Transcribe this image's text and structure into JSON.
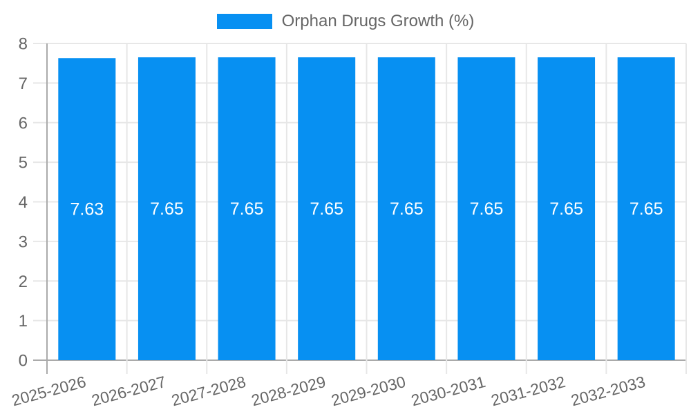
{
  "chart_data": {
    "type": "bar",
    "title": "",
    "legend": "Orphan Drugs Growth (%)",
    "legend_position": "top-center",
    "categories": [
      "2025-2026",
      "2026-2027",
      "2027-2028",
      "2028-2029",
      "2029-2030",
      "2030-2031",
      "2031-2032",
      "2032-2033"
    ],
    "series": [
      {
        "name": "Orphan Drugs Growth (%)",
        "values": [
          7.63,
          7.65,
          7.65,
          7.65,
          7.65,
          7.65,
          7.65,
          7.65
        ]
      }
    ],
    "value_labels": [
      "7.63",
      "7.65",
      "7.65",
      "7.65",
      "7.65",
      "7.65",
      "7.65",
      "7.65"
    ],
    "y_ticks": [
      0,
      1,
      2,
      3,
      4,
      5,
      6,
      7,
      8
    ],
    "ylim": [
      0,
      8
    ],
    "xlabel": "",
    "ylabel": "",
    "grid": true,
    "x_label_rotation_deg": -15,
    "colors": {
      "bar": "#0790f2",
      "axis_text": "#666666",
      "grid_line": "#e7e7e7",
      "zero_line": "#aaaaaa",
      "bar_label": "#ffffff",
      "background": "#ffffff"
    }
  }
}
